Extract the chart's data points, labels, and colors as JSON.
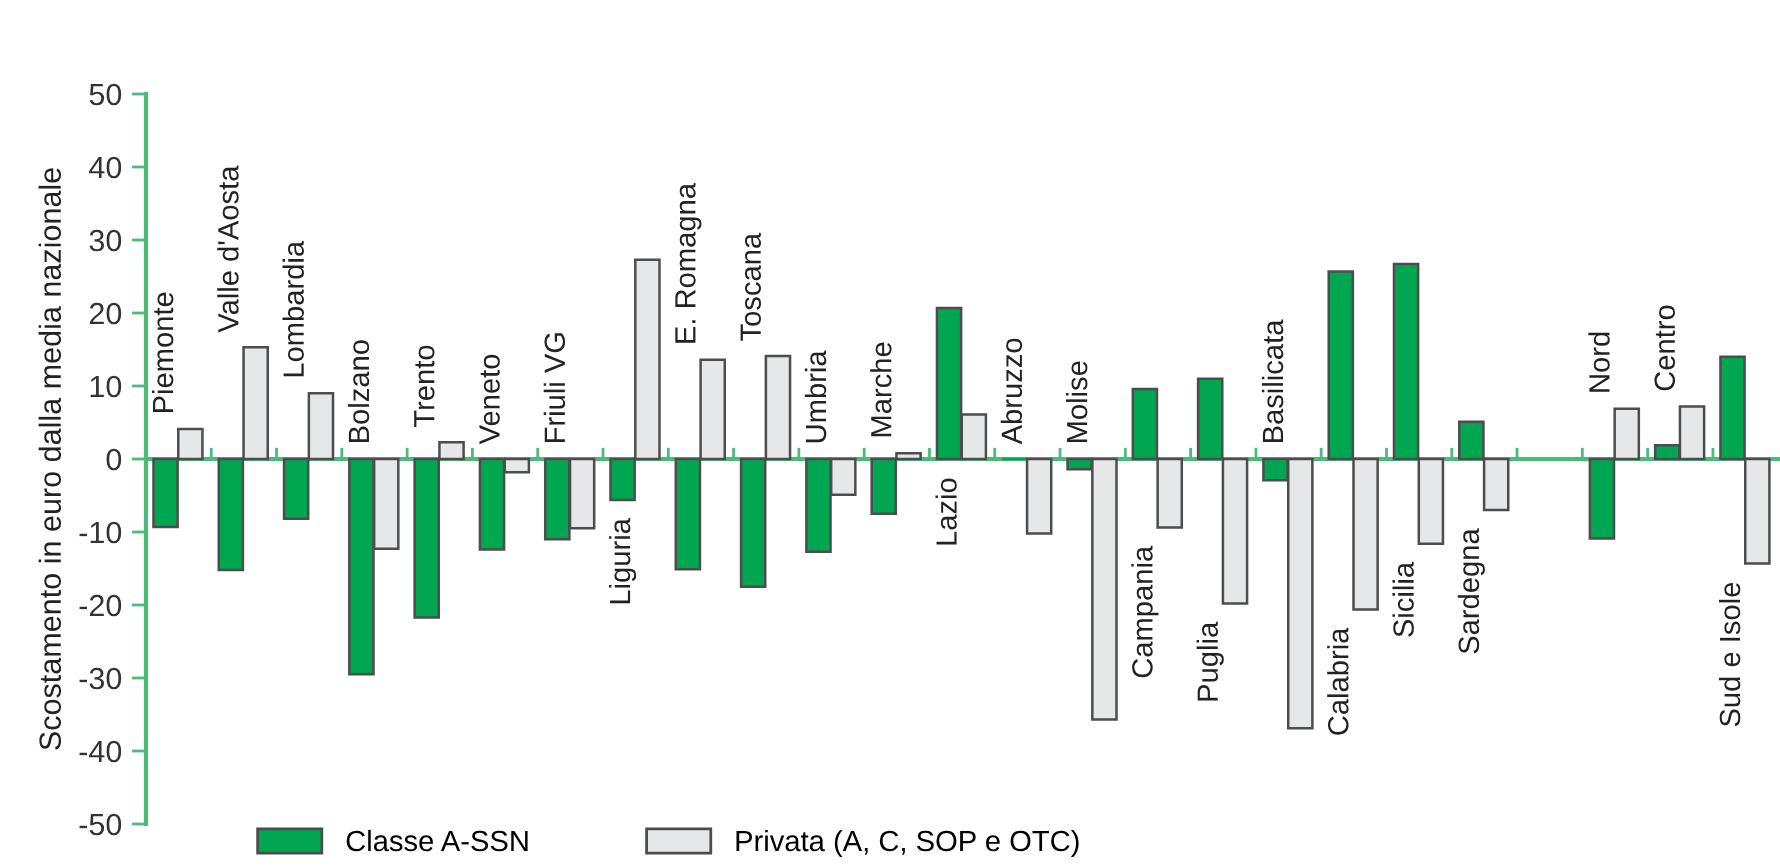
{
  "chart_data": {
    "type": "bar",
    "ylabel": "Scostamento in euro dalla media nazionale",
    "categories": [
      "Piemonte",
      "Valle d'Aosta",
      "Lombardia",
      "Bolzano",
      "Trento",
      "Veneto",
      "Friuli VG",
      "Liguria",
      "E. Romagna",
      "Toscana",
      "Umbria",
      "Marche",
      "Lazio",
      "Abruzzo",
      "Molise",
      "Campania",
      "Puglia",
      "Basilicata",
      "Calabria",
      "Sicilia",
      "Sardegna",
      null,
      "Nord",
      "Centro",
      "Sud e Isole"
    ],
    "series": [
      {
        "name": "Classe A-SSN",
        "color": "#00a650",
        "values": [
          -9.3,
          -15.2,
          -8.2,
          -29.5,
          -21.7,
          -12.4,
          -11.0,
          -5.6,
          -15.1,
          -17.5,
          -12.7,
          -7.5,
          20.7,
          0,
          -1.4,
          9.6,
          11.0,
          -2.9,
          25.7,
          26.7,
          5.1,
          null,
          -10.9,
          1.9,
          14.0
        ]
      },
      {
        "name": "Privata (A, C, SOP e OTC)",
        "color": "#e6e7e8",
        "values": [
          4.1,
          15.3,
          9.0,
          -12.3,
          2.3,
          -1.8,
          -9.5,
          27.3,
          13.6,
          14.1,
          -4.9,
          0.8,
          6.1,
          -10.2,
          -35.7,
          -9.4,
          -19.8,
          -36.9,
          -20.6,
          -11.6,
          -7.0,
          null,
          6.9,
          7.2,
          -14.3
        ]
      }
    ],
    "ylim": [
      -50,
      50
    ],
    "yticks": [
      -50,
      -40,
      -30,
      -20,
      -10,
      0,
      10,
      20,
      30,
      40,
      50
    ],
    "grid": false,
    "legend": "bottom"
  }
}
